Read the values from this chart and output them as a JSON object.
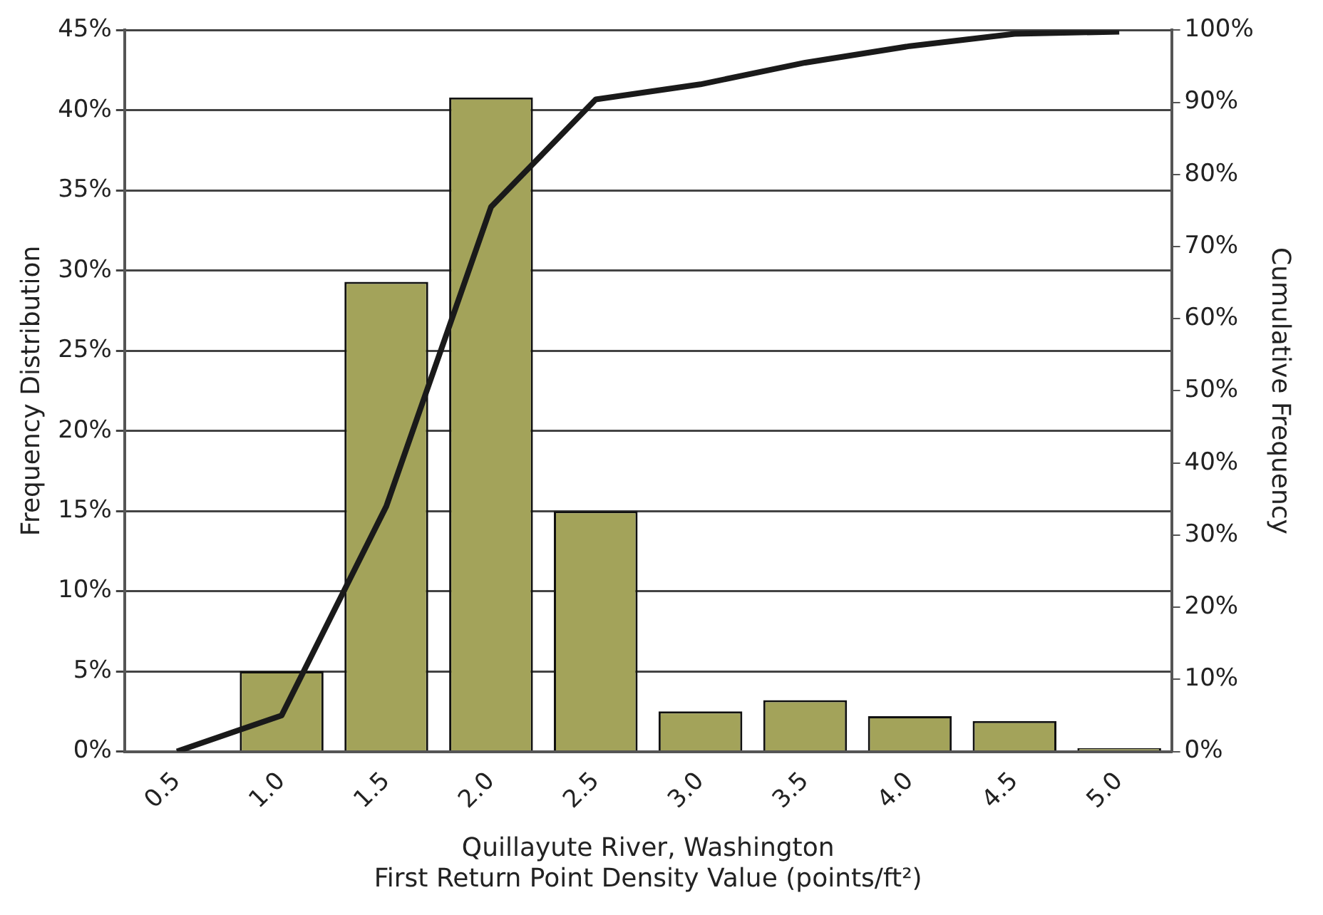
{
  "chart_data": {
    "type": "bar",
    "xlabel": "Quillayute River, Washington\nFirst Return Point Density Value (points/ft²)",
    "ylabel": "Frequency Distribution",
    "y2label": "Cumulative Frequency",
    "categories": [
      "0.5",
      "1.0",
      "1.5",
      "2.0",
      "2.5",
      "3.0",
      "3.5",
      "4.0",
      "4.5",
      "5.0"
    ],
    "series": [
      {
        "color": "#a3a35a",
        "values": [
          0,
          5,
          29.3,
          40.8,
          15,
          2.5,
          3.2,
          2.2,
          1.9,
          0.2
        ]
      },
      {
        "type": "line",
        "axis": "y2",
        "color": "#1a1a1a",
        "values": [
          0,
          5,
          34,
          75.5,
          90.4,
          92.5,
          95.5,
          97.8,
          99.5,
          99.8
        ]
      }
    ],
    "ylim": [
      0,
      45
    ],
    "yticks": [
      {
        "value": 0,
        "label": "0%"
      },
      {
        "value": 5,
        "label": "5%"
      },
      {
        "value": 10,
        "label": "10%"
      },
      {
        "value": 15,
        "label": "15%"
      },
      {
        "value": 20,
        "label": "20%"
      },
      {
        "value": 25,
        "label": "25%"
      },
      {
        "value": 30,
        "label": "30%"
      },
      {
        "value": 35,
        "label": "35%"
      },
      {
        "value": 40,
        "label": "40%"
      },
      {
        "value": 45,
        "label": "45%"
      }
    ],
    "y2lim": [
      0,
      100
    ],
    "y2ticks": [
      {
        "value": 0,
        "label": "0%"
      },
      {
        "value": 10,
        "label": "10%"
      },
      {
        "value": 20,
        "label": "20%"
      },
      {
        "value": 30,
        "label": "30%"
      },
      {
        "value": 40,
        "label": "40%"
      },
      {
        "value": 50,
        "label": "50%"
      },
      {
        "value": 60,
        "label": "60%"
      },
      {
        "value": 70,
        "label": "70%"
      },
      {
        "value": 80,
        "label": "80%"
      },
      {
        "value": 90,
        "label": "90%"
      },
      {
        "value": 100,
        "label": "100%"
      }
    ],
    "grid": "y",
    "legend": false,
    "marker": "none",
    "line_style": "solid"
  }
}
